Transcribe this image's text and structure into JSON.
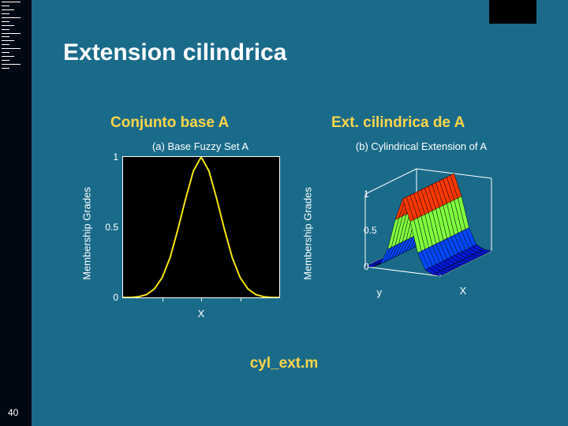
{
  "slide": {
    "title": "Extension cilindrica",
    "subtitle_left": "Conjunto base A",
    "subtitle_right": "Ext. cilindrica de A",
    "footer_file": "cyl_ext.m",
    "number": "40",
    "background_color": "#1a6b8a",
    "accent_color": "#ffd54a",
    "text_color": "#ffffff"
  },
  "chart_a": {
    "type": "line",
    "title": "(a) Base Fuzzy Set A",
    "ylabel": "Membership Grades",
    "xlabel": "X",
    "xlim": [
      0,
      1
    ],
    "ylim": [
      0,
      1
    ],
    "ytick_labels": [
      "0",
      "0.5",
      "1"
    ],
    "ytick_positions": [
      0,
      0.5,
      1
    ],
    "xtick_positions": [
      0.25,
      0.5,
      0.75
    ],
    "curve": {
      "points": [
        [
          0.0,
          0.0
        ],
        [
          0.05,
          0.0
        ],
        [
          0.1,
          0.005
        ],
        [
          0.15,
          0.02
        ],
        [
          0.2,
          0.06
        ],
        [
          0.25,
          0.14
        ],
        [
          0.3,
          0.28
        ],
        [
          0.35,
          0.48
        ],
        [
          0.4,
          0.7
        ],
        [
          0.45,
          0.9
        ],
        [
          0.5,
          1.0
        ],
        [
          0.55,
          0.9
        ],
        [
          0.6,
          0.7
        ],
        [
          0.65,
          0.48
        ],
        [
          0.7,
          0.28
        ],
        [
          0.75,
          0.14
        ],
        [
          0.8,
          0.06
        ],
        [
          0.85,
          0.02
        ],
        [
          0.9,
          0.005
        ],
        [
          0.95,
          0.0
        ],
        [
          1.0,
          0.0
        ]
      ],
      "color": "#f5e50a",
      "width": 2
    },
    "plot_bg": "#000000",
    "axis_color": "#ffffff",
    "label_fontsize": 13
  },
  "chart_b": {
    "type": "surface-wire",
    "title": "(b) Cylindrical Extension of A",
    "zlabel": "Membership Grades",
    "x_axis_label": "X",
    "y_axis_label": "y",
    "zlim": [
      0,
      1
    ],
    "ztick_labels": [
      "0",
      "0.5",
      "1"
    ],
    "ztick_positions": [
      0,
      0.5,
      1
    ],
    "profile": [
      [
        0.0,
        0.0
      ],
      [
        0.1,
        0.01
      ],
      [
        0.2,
        0.06
      ],
      [
        0.3,
        0.28
      ],
      [
        0.4,
        0.7
      ],
      [
        0.5,
        1.0
      ],
      [
        0.6,
        0.7
      ],
      [
        0.7,
        0.28
      ],
      [
        0.8,
        0.06
      ],
      [
        0.9,
        0.01
      ],
      [
        1.0,
        0.0
      ]
    ],
    "y_slices": 14,
    "colormap": [
      "#0018d8",
      "#0048ff",
      "#0090ff",
      "#00d0ff",
      "#20ffb0",
      "#80ff40",
      "#d8ff00",
      "#ffd000",
      "#ff8800",
      "#ff3800",
      "#e00000",
      "#b00030"
    ],
    "wire_color": "#000000",
    "plot_bg": "transparent",
    "axis_color": "#ffffff",
    "label_fontsize": 13
  }
}
